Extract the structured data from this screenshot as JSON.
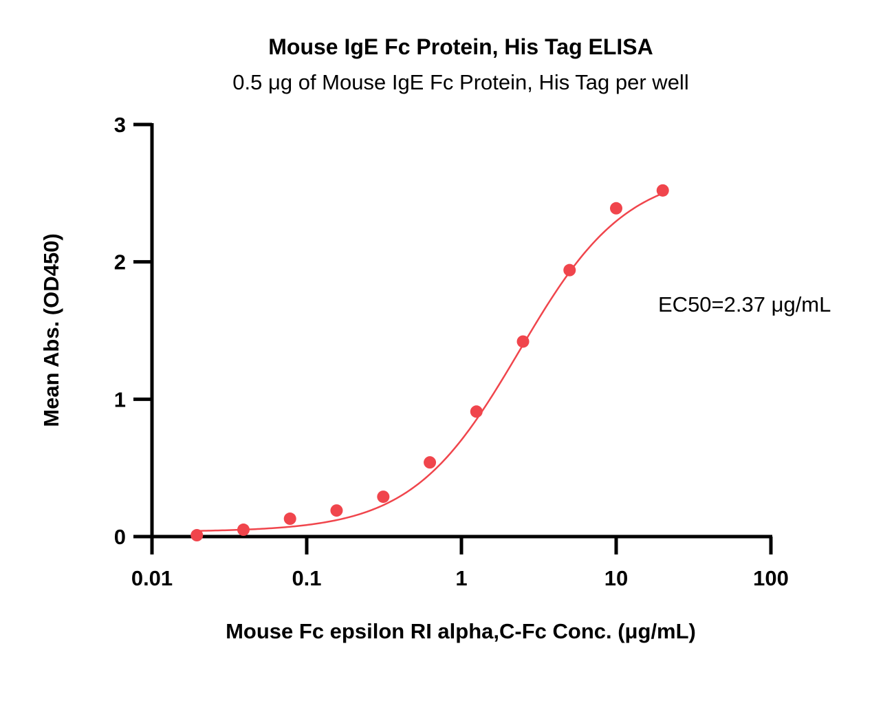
{
  "chart_data": {
    "type": "scatter",
    "title": "Mouse IgE Fc Protein, His Tag ELISA",
    "subtitle": "0.5 μg of Mouse IgE Fc Protein, His Tag per well",
    "xlabel": "Mouse Fc epsilon RI alpha,C-Fc Conc. (μg/mL)",
    "ylabel": "Mean Abs. (OD450)",
    "x_scale": "log",
    "xlim": [
      0.01,
      100
    ],
    "ylim": [
      0,
      3
    ],
    "x_ticks": [
      0.01,
      0.1,
      1,
      10,
      100
    ],
    "x_tick_labels": [
      "0.01",
      "0.1",
      "1",
      "10",
      "100"
    ],
    "y_ticks": [
      0,
      1,
      2,
      3
    ],
    "y_tick_labels": [
      "0",
      "1",
      "2",
      "3"
    ],
    "grid": false,
    "color": "#f0454c",
    "points": {
      "x": [
        0.0195,
        0.039,
        0.078,
        0.156,
        0.3125,
        0.625,
        1.25,
        2.5,
        5,
        10,
        20
      ],
      "y": [
        0.01,
        0.05,
        0.13,
        0.19,
        0.29,
        0.54,
        0.91,
        1.42,
        1.94,
        2.39,
        2.52
      ]
    },
    "fit": {
      "model": "4PL",
      "bottom": 0.035,
      "top": 2.67,
      "ec50": 2.37,
      "hill": 1.25
    },
    "annotation": "EC50=2.37 μg/mL"
  }
}
